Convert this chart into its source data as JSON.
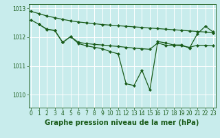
{
  "bg_color": "#c8ecec",
  "grid_color": "#ffffff",
  "line_color": "#1a5c1a",
  "title": "Graphe pression niveau de la mer (hPa)",
  "ylim": [
    1009.55,
    1013.15
  ],
  "xlim": [
    -0.3,
    23.3
  ],
  "yticks": [
    1010,
    1011,
    1012,
    1013
  ],
  "xticks": [
    0,
    1,
    2,
    3,
    4,
    5,
    6,
    7,
    8,
    9,
    10,
    11,
    12,
    13,
    14,
    15,
    16,
    17,
    18,
    19,
    20,
    21,
    22,
    23
  ],
  "series1_x": [
    0,
    1,
    2,
    3,
    4,
    5,
    6,
    7,
    8,
    9,
    10,
    11,
    12,
    13,
    14,
    15,
    16,
    17,
    18,
    19,
    20,
    21,
    22,
    23
  ],
  "series1_y": [
    1012.9,
    1012.82,
    1012.74,
    1012.68,
    1012.62,
    1012.57,
    1012.53,
    1012.5,
    1012.47,
    1012.44,
    1012.42,
    1012.4,
    1012.38,
    1012.36,
    1012.34,
    1012.32,
    1012.3,
    1012.28,
    1012.26,
    1012.24,
    1012.22,
    1012.2,
    1012.18,
    1012.15
  ],
  "series2_x": [
    0,
    1,
    2,
    3,
    4,
    5,
    6,
    7,
    8,
    9,
    10,
    11,
    12,
    13,
    14,
    15,
    16,
    17,
    18,
    19,
    20,
    21,
    22,
    23
  ],
  "series2_y": [
    1012.6,
    1012.45,
    1012.28,
    1012.24,
    1011.82,
    1012.02,
    1011.82,
    1011.78,
    1011.75,
    1011.73,
    1011.7,
    1011.68,
    1011.65,
    1011.62,
    1011.6,
    1011.58,
    1011.8,
    1011.72,
    1011.72,
    1011.7,
    1011.65,
    1011.72,
    1011.72,
    1011.7
  ],
  "series3_x": [
    1,
    2,
    3,
    4,
    5,
    6,
    7,
    8,
    9,
    10,
    11,
    12,
    13,
    14,
    15,
    16,
    17,
    18,
    19,
    20,
    21,
    22,
    23
  ],
  "series3_y": [
    1012.45,
    1012.27,
    1012.23,
    1011.82,
    1012.02,
    1011.78,
    1011.7,
    1011.65,
    1011.6,
    1011.5,
    1011.42,
    1010.38,
    1010.32,
    1010.85,
    1010.17,
    1011.85,
    1011.8,
    1011.73,
    1011.73,
    1011.62,
    1012.12,
    1012.38,
    1012.18
  ],
  "marker": "D",
  "markersize": 2.2,
  "linewidth": 0.9,
  "title_fontsize": 7.2,
  "tick_fontsize": 5.5
}
